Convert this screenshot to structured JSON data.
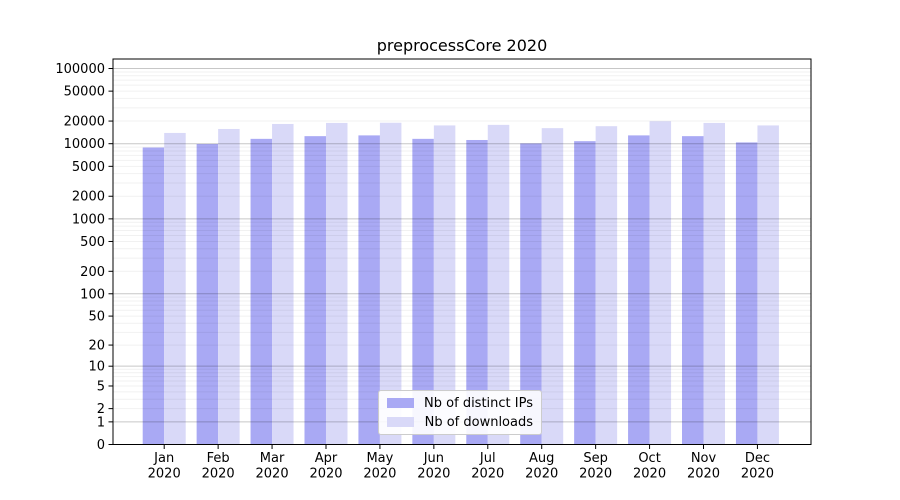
{
  "chart_data": {
    "type": "bar",
    "title": "preprocessCore 2020",
    "scale": "log1p",
    "grid": true,
    "legend_position": "lower center",
    "categories": [
      "Jan",
      "Feb",
      "Mar",
      "Apr",
      "May",
      "Jun",
      "Jul",
      "Aug",
      "Sep",
      "Oct",
      "Nov",
      "Dec"
    ],
    "category_year": "2020",
    "series": [
      {
        "name": "Nb of distinct IPs",
        "color": "#a9a9f4",
        "values": [
          8900,
          9900,
          11600,
          12600,
          12900,
          11600,
          11200,
          10100,
          10800,
          12900,
          12600,
          10400
        ]
      },
      {
        "name": "Nb of downloads",
        "color": "#d9d9f8",
        "values": [
          13900,
          15700,
          18300,
          18900,
          19000,
          17500,
          17800,
          16100,
          17100,
          19900,
          18900,
          17500
        ]
      }
    ],
    "yticks": [
      0,
      1,
      2,
      5,
      10,
      20,
      50,
      100,
      200,
      500,
      1000,
      2000,
      5000,
      10000,
      20000,
      50000,
      100000
    ],
    "ylim": [
      0,
      134000
    ],
    "colors": {
      "spine": "#000000",
      "major_grid": "rgba(0,0,0,0.22)",
      "minor_grid": "rgba(0,0,0,0.055)",
      "text": "#000000"
    }
  }
}
